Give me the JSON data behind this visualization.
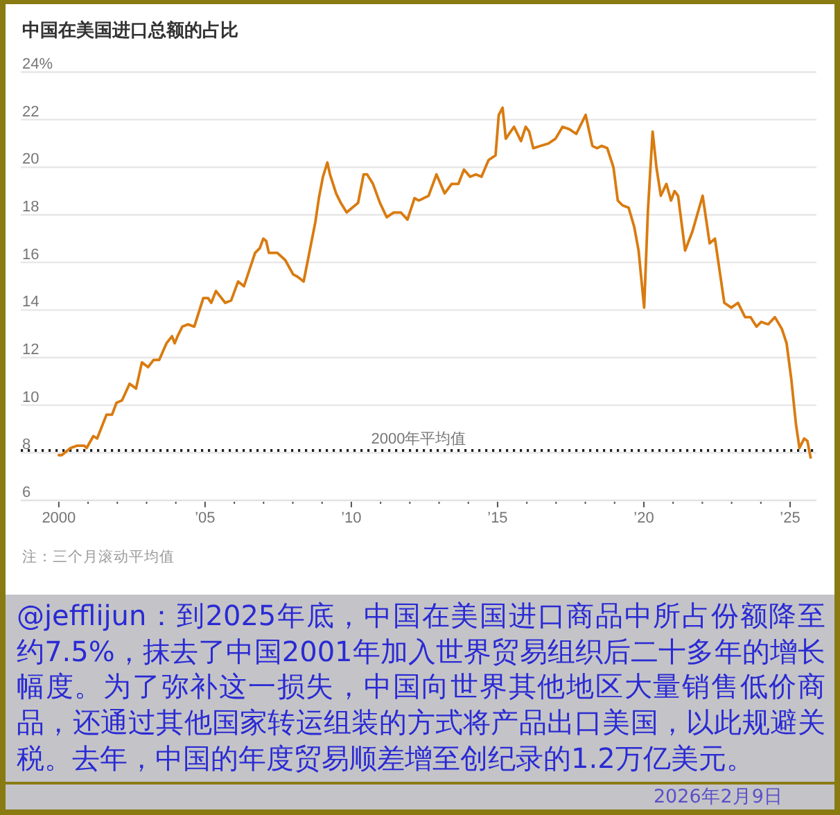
{
  "chart_data": {
    "type": "line",
    "title": "中国在美国进口总额的占比",
    "x": [
      2000.0,
      2000.1,
      2000.4,
      2000.63,
      2000.87,
      2000.95,
      2001.18,
      2001.31,
      2001.63,
      2001.82,
      2001.97,
      2002.16,
      2002.42,
      2002.64,
      2002.84,
      2003.05,
      2003.24,
      2003.43,
      2003.68,
      2003.87,
      2003.96,
      2004.06,
      2004.22,
      2004.42,
      2004.63,
      2004.94,
      2005.1,
      2005.21,
      2005.37,
      2005.69,
      2005.89,
      2006.13,
      2006.33,
      2006.71,
      2006.87,
      2006.99,
      2007.09,
      2007.18,
      2007.47,
      2007.74,
      2008.01,
      2008.16,
      2008.37,
      2008.53,
      2008.77,
      2008.89,
      2009.03,
      2009.18,
      2009.27,
      2009.48,
      2009.64,
      2009.84,
      2010.03,
      2010.23,
      2010.42,
      2010.54,
      2010.74,
      2010.98,
      2011.21,
      2011.45,
      2011.69,
      2011.92,
      2012.16,
      2012.31,
      2012.64,
      2012.91,
      2013.19,
      2013.43,
      2013.66,
      2013.85,
      2014.06,
      2014.26,
      2014.45,
      2014.69,
      2014.93,
      2015.04,
      2015.17,
      2015.28,
      2015.56,
      2015.8,
      2015.96,
      2016.08,
      2016.22,
      2016.47,
      2016.74,
      2016.98,
      2017.22,
      2017.45,
      2017.69,
      2018.01,
      2018.24,
      2018.4,
      2018.56,
      2018.75,
      2018.96,
      2019.11,
      2019.27,
      2019.48,
      2019.67,
      2019.82,
      2020.01,
      2020.14,
      2020.3,
      2020.43,
      2020.58,
      2020.77,
      2020.93,
      2021.05,
      2021.17,
      2021.41,
      2021.66,
      2022.01,
      2022.25,
      2022.43,
      2022.75,
      2022.99,
      2023.22,
      2023.46,
      2023.65,
      2023.85,
      2024.01,
      2024.25,
      2024.48,
      2024.72,
      2024.88,
      2025.04,
      2025.2,
      2025.32,
      2025.48,
      2025.59,
      2025.7
    ],
    "series": [
      {
        "color": "#d97b10",
        "values": [
          7.9,
          7.9,
          8.2,
          8.3,
          8.3,
          8.2,
          8.7,
          8.6,
          9.6,
          9.6,
          10.1,
          10.2,
          10.9,
          10.7,
          11.8,
          11.6,
          11.9,
          11.9,
          12.6,
          12.9,
          12.6,
          12.9,
          13.3,
          13.4,
          13.3,
          14.5,
          14.5,
          14.3,
          14.8,
          14.3,
          14.4,
          15.2,
          15.0,
          16.4,
          16.6,
          17.0,
          16.9,
          16.4,
          16.4,
          16.1,
          15.5,
          15.4,
          15.2,
          16.2,
          17.7,
          18.7,
          19.6,
          20.2,
          19.7,
          18.9,
          18.5,
          18.1,
          18.3,
          18.5,
          19.7,
          19.7,
          19.3,
          18.5,
          17.9,
          18.1,
          18.1,
          17.8,
          18.7,
          18.6,
          18.8,
          19.7,
          18.9,
          19.3,
          19.3,
          19.9,
          19.6,
          19.7,
          19.6,
          20.3,
          20.5,
          22.2,
          22.5,
          21.2,
          21.7,
          21.1,
          21.7,
          21.5,
          20.8,
          20.9,
          21.0,
          21.2,
          21.7,
          21.6,
          21.4,
          22.2,
          20.9,
          20.8,
          20.9,
          20.8,
          20.0,
          18.6,
          18.4,
          18.3,
          17.5,
          16.5,
          14.1,
          18.2,
          21.5,
          20.0,
          18.8,
          19.3,
          18.6,
          19.0,
          18.8,
          16.5,
          17.3,
          18.8,
          16.8,
          17.0,
          14.3,
          14.1,
          14.3,
          13.7,
          13.7,
          13.3,
          13.5,
          13.4,
          13.7,
          13.2,
          12.6,
          11.1,
          9.2,
          8.2,
          8.6,
          8.5,
          7.8
        ]
      }
    ],
    "xlim": [
      1998.7,
      2025.9
    ],
    "ylim": [
      6,
      24
    ],
    "xticks": [
      {
        "value": 2000,
        "label": "2000"
      },
      {
        "value": 2001,
        "label": null
      },
      {
        "value": 2002,
        "label": null
      },
      {
        "value": 2003,
        "label": null
      },
      {
        "value": 2004,
        "label": null
      },
      {
        "value": 2005,
        "label": "’05"
      },
      {
        "value": 2006,
        "label": null
      },
      {
        "value": 2007,
        "label": null
      },
      {
        "value": 2008,
        "label": null
      },
      {
        "value": 2009,
        "label": null
      },
      {
        "value": 2010,
        "label": "’10"
      },
      {
        "value": 2011,
        "label": null
      },
      {
        "value": 2012,
        "label": null
      },
      {
        "value": 2013,
        "label": null
      },
      {
        "value": 2014,
        "label": null
      },
      {
        "value": 2015,
        "label": "’15"
      },
      {
        "value": 2016,
        "label": null
      },
      {
        "value": 2017,
        "label": null
      },
      {
        "value": 2018,
        "label": null
      },
      {
        "value": 2019,
        "label": null
      },
      {
        "value": 2020,
        "label": "’20"
      },
      {
        "value": 2021,
        "label": null
      },
      {
        "value": 2022,
        "label": null
      },
      {
        "value": 2023,
        "label": null
      },
      {
        "value": 2024,
        "label": null
      },
      {
        "value": 2025,
        "label": "’25"
      }
    ],
    "yticks": [
      6,
      8,
      10,
      12,
      14,
      16,
      18,
      20,
      22,
      {
        "value": 24,
        "label": "24%"
      }
    ],
    "grid": "y",
    "marker": "none",
    "line_style": "solid",
    "ref_lines": [
      {
        "axis": "y",
        "value": 8.1,
        "label": "2000年平均值",
        "color": "#222222",
        "line_style": "dotted"
      }
    ],
    "annotations": [
      "注：三个月滚动平均值",
      "@jefflijun：到2025年底，中国在美国进口商品中所占份额降至约7.5%，抹去了中国2001年加入世界贸易组织后二十多年的增长幅度。为了弥补这一损失，中国向世界其他地区大量销售低价商品，还通过其他国家转运组装的方式将产品出口美国，以此规避关税。去年，中国的年度贸易顺差增至创纪录的1.2万亿美元。",
      "2026年2月9日"
    ]
  }
}
